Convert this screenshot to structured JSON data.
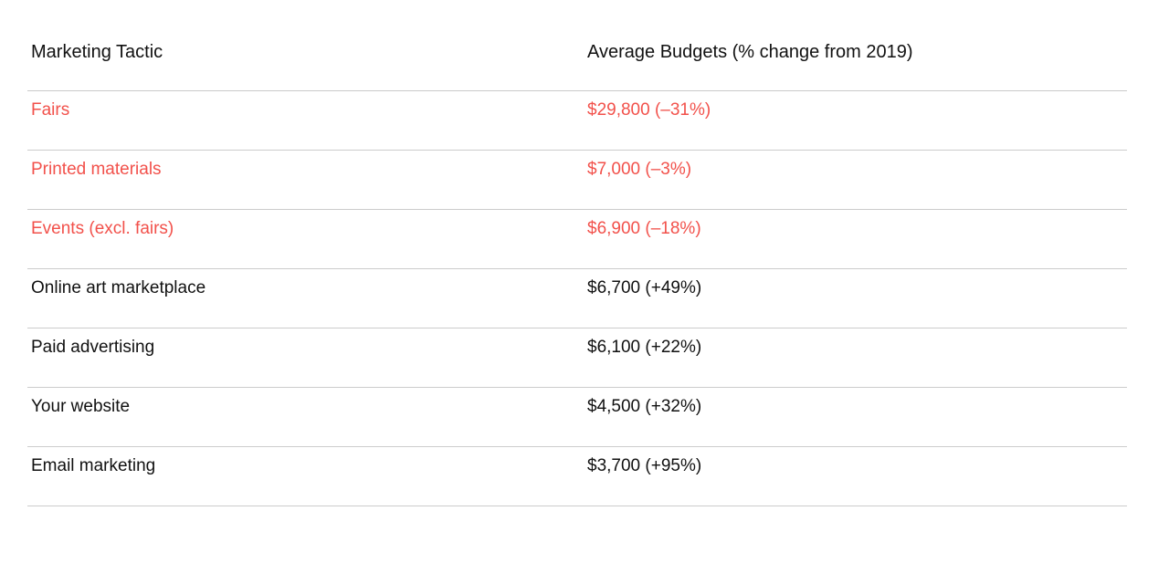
{
  "table": {
    "columns": [
      {
        "label": "Marketing Tactic"
      },
      {
        "label": "Average Budgets (% change from 2019)"
      }
    ],
    "rows": [
      {
        "tactic": "Fairs",
        "budget": "$29,800 (–31%)",
        "highlighted": true
      },
      {
        "tactic": "Printed materials",
        "budget": "$7,000 (–3%)",
        "highlighted": true
      },
      {
        "tactic": "Events (excl. fairs)",
        "budget": "$6,900 (–18%)",
        "highlighted": true
      },
      {
        "tactic": "Online art marketplace",
        "budget": "$6,700 (+49%)",
        "highlighted": false
      },
      {
        "tactic": "Paid advertising",
        "budget": "$6,100 (+22%)",
        "highlighted": false
      },
      {
        "tactic": "Your website",
        "budget": "$4,500 (+32%)",
        "highlighted": false
      },
      {
        "tactic": "Email marketing",
        "budget": "$3,700 (+95%)",
        "highlighted": false
      }
    ],
    "colors": {
      "highlight_text": "#f2514b",
      "default_text": "#111111",
      "divider": "#cccccc",
      "background": "#ffffff"
    }
  },
  "chart_data": {
    "type": "table",
    "title": "",
    "columns": [
      "Marketing Tactic",
      "Average Budgets (% change from 2019)"
    ],
    "rows": [
      [
        "Fairs",
        "$29,800 (–31%)"
      ],
      [
        "Printed materials",
        "$7,000 (–3%)"
      ],
      [
        "Events (excl. fairs)",
        "$6,900 (–18%)"
      ],
      [
        "Online art marketplace",
        "$6,700 (+49%)"
      ],
      [
        "Paid advertising",
        "$6,100 (+22%)"
      ],
      [
        "Your website",
        "$4,500 (+32%)"
      ],
      [
        "Email marketing",
        "$3,700 (+95%)"
      ]
    ],
    "average_budget_usd": [
      29800,
      7000,
      6900,
      6700,
      6100,
      4500,
      3700
    ],
    "pct_change_from_2019": [
      -31,
      -3,
      -18,
      49,
      22,
      32,
      95
    ],
    "highlighted_rows": [
      "Fairs",
      "Printed materials",
      "Events (excl. fairs)"
    ]
  }
}
